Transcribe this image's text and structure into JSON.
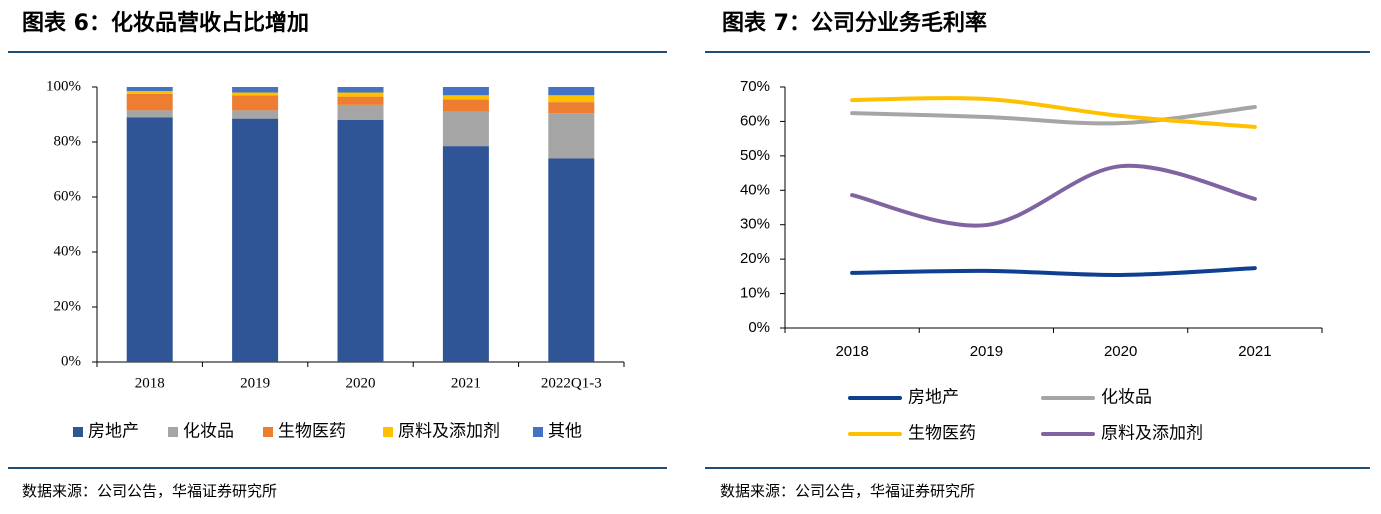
{
  "chart_data": [
    {
      "type": "bar",
      "stacked": true,
      "title": "图表 6：化妆品营收占比增加",
      "source": "数据来源：公司公告，华福证券研究所",
      "categories": [
        "2018",
        "2019",
        "2020",
        "2021",
        "2022Q1-3"
      ],
      "series": [
        {
          "name": "房地产",
          "color": "#2f5597",
          "values": [
            89,
            88.5,
            88,
            78.5,
            74
          ]
        },
        {
          "name": "化妆品",
          "color": "#a5a5a5",
          "values": [
            2.5,
            3,
            5.5,
            12.5,
            16.5
          ]
        },
        {
          "name": "生物医药",
          "color": "#ed7d31",
          "values": [
            6,
            5.5,
            3,
            4.5,
            4
          ]
        },
        {
          "name": "原料及添加剂",
          "color": "#ffc000",
          "values": [
            1,
            1,
            1.5,
            1.5,
            2.5
          ]
        },
        {
          "name": "其他",
          "color": "#4472c4",
          "values": [
            1.5,
            2,
            2,
            3,
            3
          ]
        }
      ],
      "ylim": [
        0,
        100
      ],
      "yticks": [
        {
          "value": 0,
          "label": "0%"
        },
        {
          "value": 20,
          "label": "20%"
        },
        {
          "value": 40,
          "label": "40%"
        },
        {
          "value": 60,
          "label": "60%"
        },
        {
          "value": 80,
          "label": "80%"
        },
        {
          "value": 100,
          "label": "100%"
        }
      ],
      "grid": false,
      "legend": "bottom"
    },
    {
      "type": "line",
      "smooth": true,
      "title": "图表 7：公司分业务毛利率",
      "source": "数据来源：公司公告，华福证券研究所",
      "categories": [
        "2018",
        "2019",
        "2020",
        "2021"
      ],
      "series": [
        {
          "name": "房地产",
          "color": "#0e3f91",
          "values": [
            16,
            16.6,
            15.4,
            17.4
          ]
        },
        {
          "name": "化妆品",
          "color": "#a5a5a5",
          "values": [
            62.4,
            61.3,
            59.5,
            64.2
          ]
        },
        {
          "name": "生物医药",
          "color": "#ffc000",
          "values": [
            66.2,
            66.5,
            61.6,
            58.4
          ]
        },
        {
          "name": "原料及添加剂",
          "color": "#8064a2",
          "values": [
            38.6,
            29.9,
            47,
            37.5
          ]
        }
      ],
      "ylim": [
        0,
        70
      ],
      "yticks": [
        {
          "value": 0,
          "label": "0%"
        },
        {
          "value": 10,
          "label": "10%"
        },
        {
          "value": 20,
          "label": "20%"
        },
        {
          "value": 30,
          "label": "30%"
        },
        {
          "value": 40,
          "label": "40%"
        },
        {
          "value": 50,
          "label": "50%"
        },
        {
          "value": 60,
          "label": "60%"
        },
        {
          "value": 70,
          "label": "70%"
        }
      ],
      "grid": false,
      "legend": "bottom"
    }
  ]
}
